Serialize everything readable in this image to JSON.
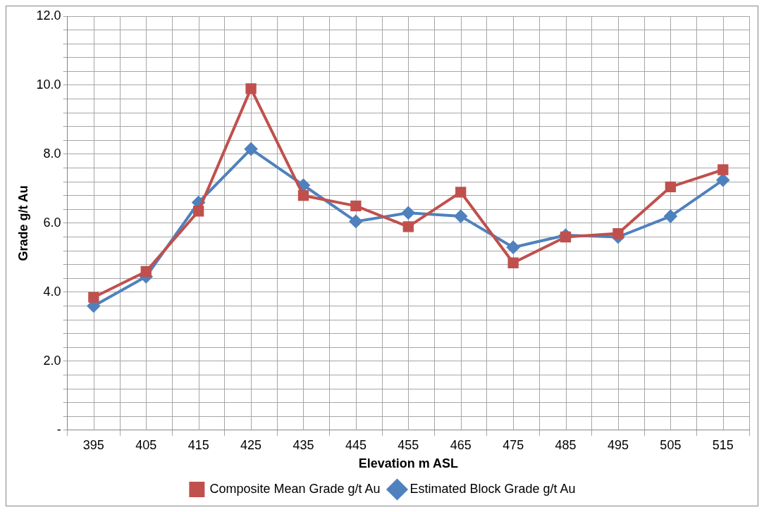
{
  "chart_data": {
    "type": "line",
    "xlabel": "Elevation m ASL",
    "ylabel": "Grade g/t Au",
    "categories": [
      "395",
      "405",
      "415",
      "425",
      "435",
      "445",
      "455",
      "465",
      "475",
      "485",
      "495",
      "505",
      "515"
    ],
    "series": [
      {
        "name": "Estimated Block Grade g/t Au",
        "color": "#4f81bd",
        "marker": "diamond",
        "values": [
          3.6,
          4.45,
          6.6,
          8.15,
          7.1,
          6.05,
          6.3,
          6.2,
          5.3,
          5.65,
          5.6,
          6.2,
          7.25
        ]
      },
      {
        "name": "Composite Mean Grade g/t Au",
        "color": "#c0504d",
        "marker": "square",
        "values": [
          3.85,
          4.6,
          6.35,
          9.9,
          6.8,
          6.5,
          5.9,
          6.9,
          4.85,
          5.6,
          5.7,
          7.05,
          7.55
        ]
      }
    ],
    "ylim": [
      0,
      12
    ],
    "yticks": [
      {
        "value": 0,
        "label": "-"
      },
      {
        "value": 0.4,
        "label": null
      },
      {
        "value": 0.8,
        "label": null
      },
      {
        "value": 1.2,
        "label": null
      },
      {
        "value": 1.6,
        "label": null
      },
      {
        "value": 2,
        "label": "2.0"
      },
      {
        "value": 2.4,
        "label": null
      },
      {
        "value": 2.8,
        "label": null
      },
      {
        "value": 3.2,
        "label": null
      },
      {
        "value": 3.6,
        "label": null
      },
      {
        "value": 4,
        "label": "4.0"
      },
      {
        "value": 4.4,
        "label": null
      },
      {
        "value": 4.8,
        "label": null
      },
      {
        "value": 5.2,
        "label": null
      },
      {
        "value": 5.6,
        "label": null
      },
      {
        "value": 6,
        "label": "6.0"
      },
      {
        "value": 6.4,
        "label": null
      },
      {
        "value": 6.8,
        "label": null
      },
      {
        "value": 7.2,
        "label": null
      },
      {
        "value": 7.6,
        "label": null
      },
      {
        "value": 8,
        "label": "8.0"
      },
      {
        "value": 8.4,
        "label": null
      },
      {
        "value": 8.8,
        "label": null
      },
      {
        "value": 9.2,
        "label": null
      },
      {
        "value": 9.6,
        "label": null
      },
      {
        "value": 10,
        "label": "10.0"
      },
      {
        "value": 10.4,
        "label": null
      },
      {
        "value": 10.8,
        "label": null
      },
      {
        "value": 11.2,
        "label": null
      },
      {
        "value": 11.6,
        "label": null
      },
      {
        "value": 12,
        "label": "12.0"
      }
    ],
    "grid": true,
    "legend": "bottom",
    "line_style": "solid"
  }
}
